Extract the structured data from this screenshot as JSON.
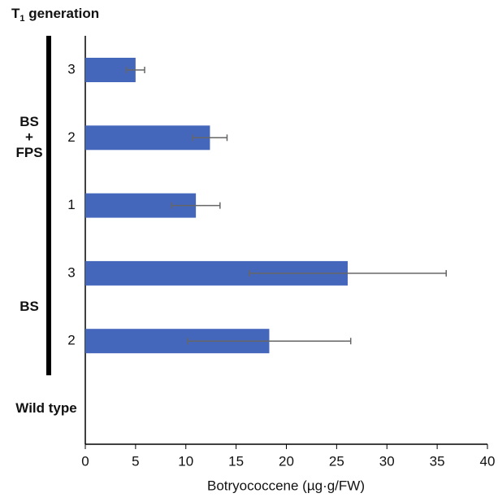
{
  "chart_data": {
    "type": "bar",
    "orientation": "horizontal",
    "title_parts": [
      "T",
      "1",
      " generation"
    ],
    "x_label": "Botryococcene (µg·g/FW)",
    "color": "#4466bb",
    "error_color": "#666666",
    "xlim": [
      0,
      40
    ],
    "xticks": [
      0,
      5,
      10,
      15,
      20,
      25,
      30,
      35,
      40
    ],
    "groups": [
      {
        "label": [
          "BS",
          "+",
          "FPS"
        ],
        "categories": [
          "3",
          "2",
          "1"
        ],
        "values": [
          5.0,
          12.4,
          11.0
        ],
        "errors": [
          0.9,
          1.7,
          2.4
        ]
      },
      {
        "label": [
          "BS"
        ],
        "categories": [
          "3",
          "2"
        ],
        "values": [
          26.1,
          18.3
        ],
        "errors": [
          9.8,
          8.1
        ]
      },
      {
        "label": [
          "Wild type"
        ],
        "categories": [
          null
        ],
        "values": [
          null
        ],
        "errors": [
          null
        ]
      }
    ]
  }
}
